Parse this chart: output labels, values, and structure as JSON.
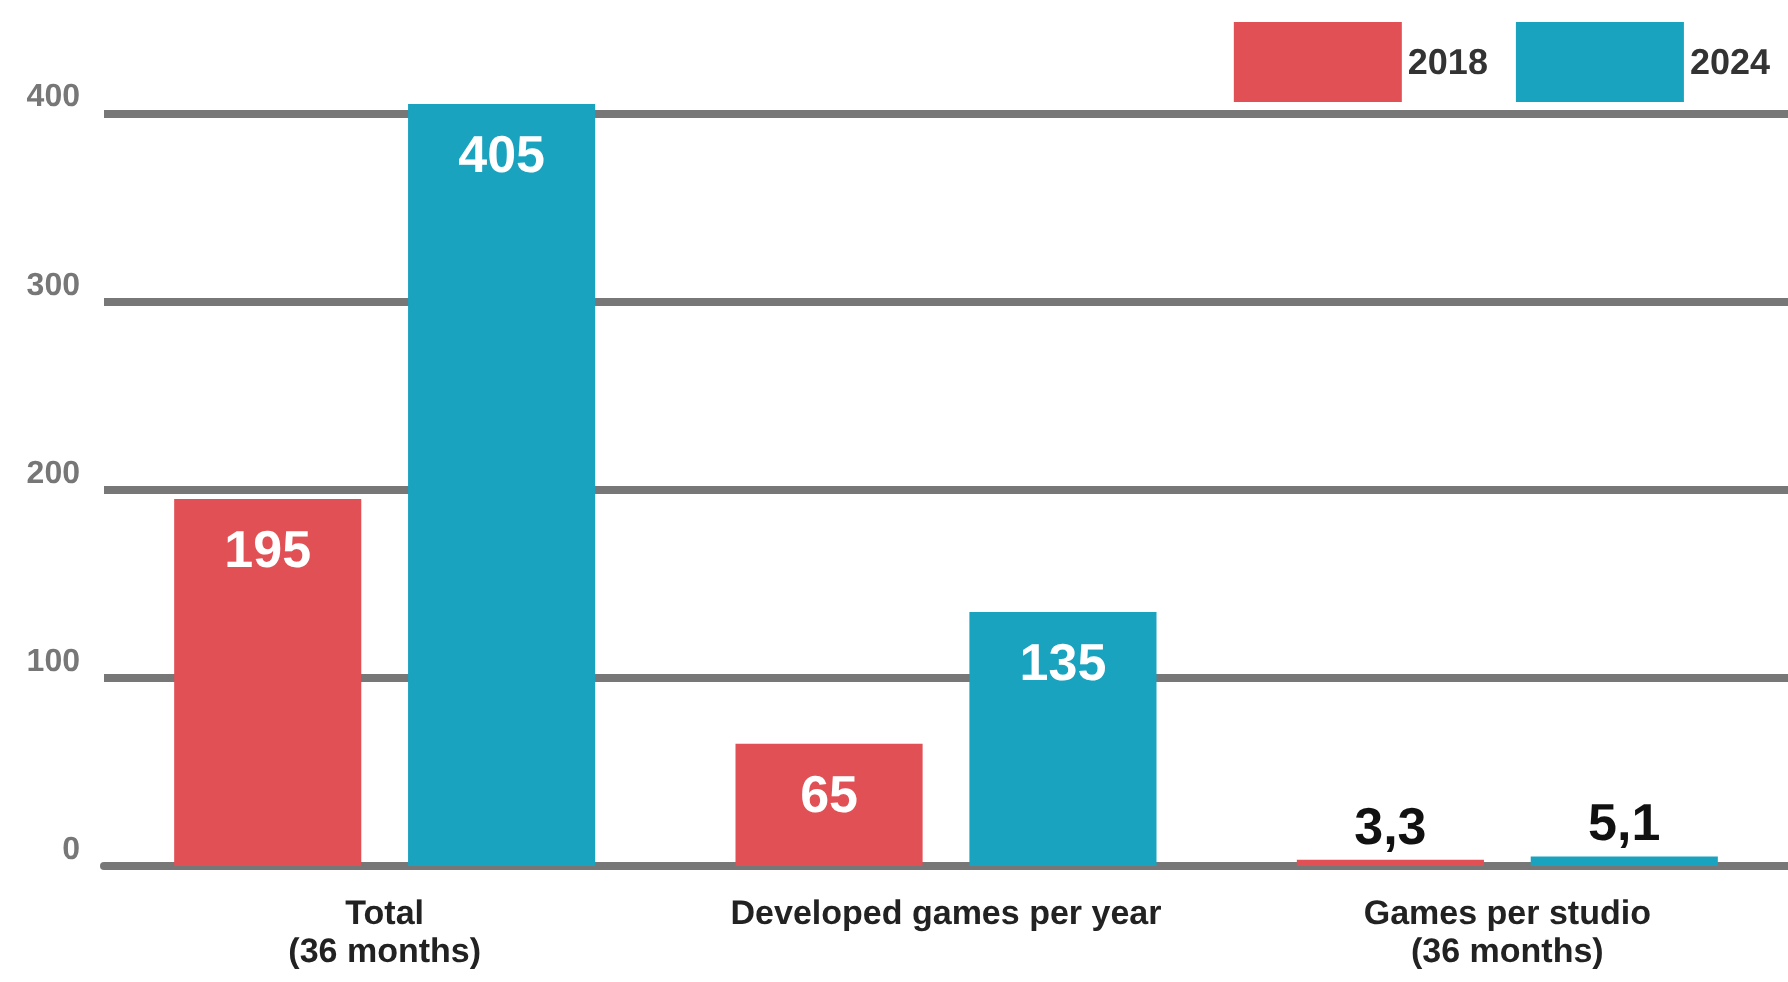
{
  "chart_data": {
    "type": "bar",
    "categories": [
      "Total\n(36 months)",
      "Developed games per year",
      "Games per studio\n(36 months)"
    ],
    "series": [
      {
        "name": "2018",
        "color": "#e05055",
        "values": [
          195,
          65,
          3.3
        ],
        "value_labels": [
          "195",
          "65",
          "3,3"
        ]
      },
      {
        "name": "2024",
        "color": "#1aa3bf",
        "values": [
          405,
          135,
          5.1
        ],
        "value_labels": [
          "405",
          "135",
          "5,1"
        ]
      }
    ],
    "ylim": [
      0,
      405
    ],
    "yticks": [
      0,
      100,
      200,
      300,
      400
    ],
    "grid": "y",
    "legend": "top right"
  }
}
